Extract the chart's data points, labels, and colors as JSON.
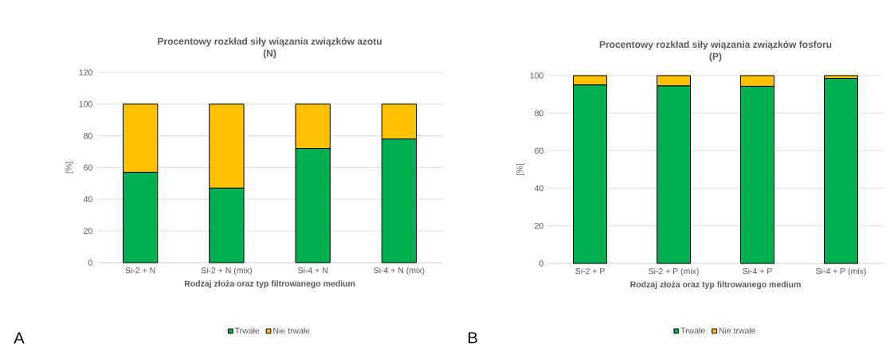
{
  "chart_data": [
    {
      "type": "bar",
      "title": "Procentowy rozkład siły wiązania związków azotu",
      "subtitle": "(N)",
      "xlabel": "Rodzaj złoża oraz typ filtrowanego medium",
      "ylabel": "[%]",
      "categories": [
        "Si-2 + N",
        "Si-2 + N (mix)",
        "Si-4 + N",
        "Si-4 + N (mix)"
      ],
      "series": [
        {
          "name": "Trwałe",
          "color": "#00b050",
          "values": [
            57,
            47,
            72,
            78
          ]
        },
        {
          "name": "Nie trwałe",
          "color": "#ffc000",
          "values": [
            43,
            53,
            28,
            22
          ]
        }
      ],
      "stacked": true,
      "ylim": [
        0,
        120
      ],
      "yticks": [
        0,
        20,
        40,
        60,
        80,
        100,
        120
      ],
      "grid": "y",
      "legend": "bottom",
      "annotations": [
        "A"
      ]
    },
    {
      "type": "bar",
      "title": "Procentowy rozkład siły wiązania związków fosforu",
      "subtitle": "(P)",
      "xlabel": "Rodzaj złoża oraz typ filtrowanego medium",
      "ylabel": "[%]",
      "categories": [
        "Si-2 + P",
        "Si-2 + P (mix)",
        "Si-4 + P",
        "Si-4 + P (mix)"
      ],
      "series": [
        {
          "name": "Trwałe",
          "color": "#00b050",
          "values": [
            95,
            94.5,
            94.3,
            98.5
          ]
        },
        {
          "name": "Nie trwałe",
          "color": "#ffc000",
          "values": [
            5,
            5.5,
            5.7,
            1.5
          ]
        }
      ],
      "stacked": true,
      "ylim": [
        0,
        100
      ],
      "yticks": [
        0,
        20,
        40,
        60,
        80,
        100
      ],
      "grid": "y",
      "legend": "bottom",
      "annotations": [
        "B"
      ]
    }
  ]
}
